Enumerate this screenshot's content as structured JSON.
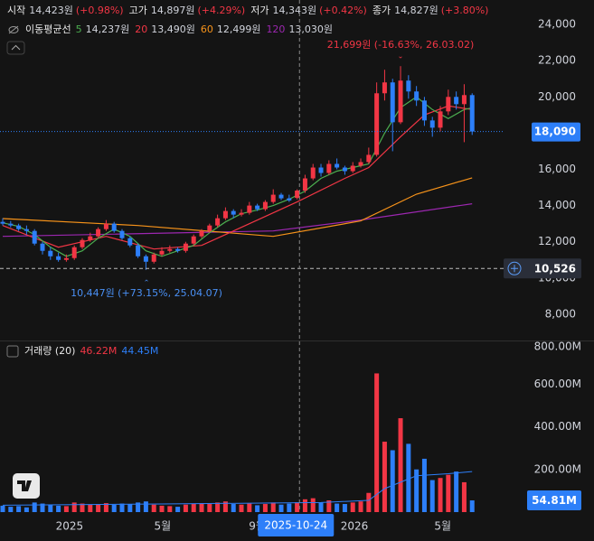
{
  "chart_data": {
    "type": "candlestick",
    "ohlc_legend": [
      {
        "label": "시작",
        "value": "14,423원",
        "change": "(+0.98%)"
      },
      {
        "label": "고가",
        "value": "14,897원",
        "change": "(+4.29%)"
      },
      {
        "label": "저가",
        "value": "14,343원",
        "change": "(+0.42%)"
      },
      {
        "label": "종가",
        "value": "14,827원",
        "change": "(+3.80%)"
      }
    ],
    "moving_averages": {
      "title": "이동평균선",
      "series": [
        {
          "period": 5,
          "value_label": "14,237원",
          "color": "#4caf50",
          "x": [
            0,
            2,
            4,
            6,
            8,
            10,
            12,
            14,
            16,
            18,
            20,
            22,
            24,
            26,
            28,
            30,
            32,
            34,
            36,
            38,
            40,
            42,
            44,
            46,
            48,
            50,
            52,
            54,
            56,
            58,
            59
          ],
          "values": [
            13050,
            12850,
            12400,
            11700,
            11200,
            11500,
            12200,
            12700,
            12300,
            11500,
            11200,
            11500,
            11800,
            12500,
            13100,
            13550,
            13750,
            14000,
            14350,
            14800,
            15500,
            15900,
            16100,
            16300,
            18000,
            19400,
            20000,
            19300,
            18800,
            19300,
            19400
          ]
        },
        {
          "period": 20,
          "value_label": "13,490원",
          "color": "#f23645",
          "x": [
            0,
            7,
            13,
            19,
            25,
            31,
            37,
            43,
            46,
            50,
            53,
            56,
            59
          ],
          "values": [
            12900,
            11700,
            12300,
            11600,
            11800,
            13000,
            14200,
            15500,
            16100,
            17800,
            19000,
            19500,
            19300
          ]
        },
        {
          "period": 60,
          "value_label": "12,499원",
          "color": "#f7931a",
          "x": [
            0,
            17,
            34,
            45,
            52,
            59
          ],
          "values": [
            13280,
            12900,
            12300,
            13150,
            14630,
            15530
          ]
        },
        {
          "period": 120,
          "value_label": "13,030원",
          "color": "#9c27b0",
          "x": [
            0,
            34,
            45,
            59
          ],
          "values": [
            12300,
            12600,
            13200,
            14100
          ]
        }
      ]
    },
    "up_color": "#f23645",
    "down_color": "#2d7ff9",
    "candles": {
      "open": [
        13100,
        13000,
        12900,
        12700,
        12600,
        11900,
        11500,
        11200,
        11000,
        11100,
        11700,
        12100,
        12300,
        12700,
        13000,
        12600,
        12200,
        11800,
        11200,
        10900,
        11300,
        11500,
        11600,
        11500,
        11900,
        12300,
        12600,
        12900,
        13300,
        13700,
        13500,
        13600,
        14000,
        13800,
        14200,
        14600,
        14400,
        14423,
        14827,
        15500,
        16100,
        15800,
        16300,
        16100,
        15900,
        16200,
        16400,
        16800,
        20200,
        20800,
        18600,
        20900,
        20300,
        19800,
        18700,
        18300,
        19200,
        20000,
        19600,
        20100
      ],
      "high": [
        13300,
        13150,
        13000,
        12900,
        12700,
        12000,
        11700,
        11400,
        11300,
        11800,
        12200,
        12500,
        12800,
        13200,
        13100,
        12700,
        12300,
        11900,
        11300,
        11400,
        11700,
        11800,
        11700,
        12000,
        12400,
        12700,
        13000,
        13500,
        13900,
        13800,
        13800,
        14200,
        14100,
        14300,
        14900,
        14700,
        14600,
        14897,
        15700,
        16300,
        16300,
        16500,
        16600,
        16200,
        16400,
        16600,
        17200,
        20800,
        21500,
        21000,
        21699,
        21200,
        20600,
        20000,
        18900,
        19500,
        20400,
        20300,
        20700,
        20200
      ],
      "low": [
        12900,
        12800,
        12600,
        12400,
        11800,
        11300,
        11000,
        10900,
        10900,
        11000,
        11600,
        12000,
        12200,
        12600,
        12500,
        12100,
        11700,
        11100,
        10447,
        10800,
        11200,
        11400,
        11400,
        11400,
        11800,
        12200,
        12500,
        12800,
        13200,
        13300,
        13400,
        13500,
        13700,
        13700,
        14100,
        14300,
        14200,
        14343,
        14700,
        15400,
        15600,
        15700,
        16000,
        15700,
        15800,
        16100,
        16300,
        16700,
        19800,
        17000,
        18500,
        19900,
        19500,
        18400,
        17800,
        18100,
        19000,
        19300,
        17500,
        17900
      ],
      "close": [
        13000,
        12900,
        12700,
        12600,
        11900,
        11500,
        11200,
        11000,
        11100,
        11700,
        12100,
        12300,
        12700,
        13000,
        12600,
        12200,
        11800,
        11200,
        10900,
        11300,
        11500,
        11600,
        11500,
        11900,
        12300,
        12600,
        12900,
        13300,
        13700,
        13500,
        13600,
        14000,
        13800,
        14200,
        14600,
        14400,
        14283,
        14827,
        15500,
        16100,
        15800,
        16300,
        16100,
        15900,
        16200,
        16400,
        16800,
        20200,
        20800,
        18600,
        20900,
        20300,
        19800,
        18700,
        18300,
        19200,
        20000,
        19600,
        20100,
        18090
      ]
    },
    "xlim": [
      -0.34,
      62.95
    ],
    "xticks": [
      {
        "value": 8.4,
        "label": "2025"
      },
      {
        "value": 20.1,
        "label": "5월"
      },
      {
        "value": 32.0,
        "label": "9월"
      },
      {
        "value": 44.2,
        "label": "2026"
      },
      {
        "value": 55.3,
        "label": "5월"
      }
    ],
    "ylim": [
      6550,
      25350
    ],
    "yticks": [
      {
        "value": 8000,
        "label": "8,000"
      },
      {
        "value": 10000,
        "label": "10,000"
      },
      {
        "value": 12000,
        "label": "12,000"
      },
      {
        "value": 14000,
        "label": "14,000"
      },
      {
        "value": 16000,
        "label": "16,000"
      },
      {
        "value": 18000,
        "label": "18,000"
      },
      {
        "value": 20000,
        "label": "20,000"
      },
      {
        "value": 22000,
        "label": "22,000"
      },
      {
        "value": 24000,
        "label": "24,000"
      }
    ],
    "high_annotation": "21,699원 (-16.63%, 26.03.02)",
    "low_annotation": "10,447원 (+73.15%, 25.04.07)",
    "last_price": {
      "value": 18090,
      "label": "18,090"
    },
    "price_line": {
      "value": 10526,
      "label": "10,526"
    },
    "crosshair": {
      "x": 37.3,
      "label": "2025-10-24"
    },
    "volume": {
      "title": "거래량 (20)",
      "legend_values": [
        "46.22M",
        "44.45M"
      ],
      "values": [
        30,
        25,
        28,
        22,
        45,
        40,
        35,
        30,
        28,
        45,
        40,
        35,
        38,
        42,
        35,
        40,
        38,
        45,
        50,
        35,
        30,
        28,
        25,
        35,
        40,
        42,
        38,
        45,
        50,
        38,
        35,
        40,
        32,
        38,
        45,
        35,
        40,
        46.22,
        60,
        65,
        45,
        55,
        40,
        38,
        45,
        50,
        90,
        650,
        330,
        290,
        440,
        320,
        200,
        250,
        150,
        160,
        175,
        190,
        140,
        54.81
      ],
      "ma": {
        "color": "#2d7ff9",
        "x": [
          0,
          20,
          40,
          46,
          48,
          52,
          56,
          59
        ],
        "values": [
          32,
          38,
          45,
          55,
          110,
          170,
          180,
          190
        ]
      },
      "ylim": [
        0,
        800
      ],
      "yticks": [
        {
          "value": 200,
          "label": "200.00M"
        },
        {
          "value": 400,
          "label": "400.00M"
        },
        {
          "value": 600,
          "label": "600.00M"
        },
        {
          "value": 800,
          "label": "800.00M"
        }
      ],
      "last": {
        "value": 54.81,
        "label": "54.81M"
      }
    }
  }
}
